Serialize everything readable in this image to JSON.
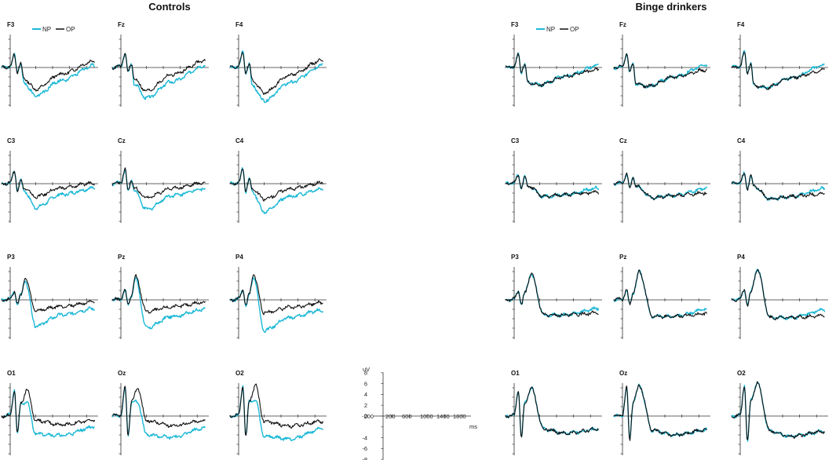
{
  "chart_data": {
    "type": "line",
    "groups": [
      {
        "title": "Controls",
        "side": "left"
      },
      {
        "title": "Binge drinkers",
        "side": "right"
      }
    ],
    "channels": [
      [
        "F3",
        "Fz",
        "F4"
      ],
      [
        "C3",
        "Cz",
        "C4"
      ],
      [
        "P3",
        "Pz",
        "P4"
      ],
      [
        "O1",
        "Oz",
        "O2"
      ]
    ],
    "legend": [
      {
        "name": "NP",
        "color": "#1bb8d6"
      },
      {
        "name": "OP",
        "color": "#111111"
      }
    ],
    "time_range_ms": [
      -200,
      2000
    ],
    "y_range_uV": [
      -8,
      8
    ],
    "scale": {
      "y_unit": "uV",
      "y_ticks": [
        "8",
        "6",
        "4",
        "2",
        "0",
        "-2",
        "-4",
        "-6",
        "-8"
      ],
      "x_unit": "ms",
      "x_ticks": [
        "-200",
        "200",
        "600",
        "1000",
        "1400",
        "1800"
      ]
    },
    "series_note": "Grand-average ERP waveforms per electrode; approximate trends read from the plot (positive up).",
    "waveforms": {
      "Controls": {
        "F": {
          "NP": [
            [
              -200,
              0
            ],
            [
              0,
              0.2
            ],
            [
              100,
              3
            ],
            [
              170,
              -1
            ],
            [
              250,
              0.8
            ],
            [
              320,
              -3.5
            ],
            [
              600,
              -6.5
            ],
            [
              1200,
              -3
            ],
            [
              2000,
              0.5
            ]
          ],
          "OP": [
            [
              -200,
              0
            ],
            [
              0,
              0.2
            ],
            [
              100,
              3
            ],
            [
              170,
              -1
            ],
            [
              250,
              0.8
            ],
            [
              320,
              -2.5
            ],
            [
              600,
              -5
            ],
            [
              1200,
              -1.5
            ],
            [
              2000,
              1.5
            ]
          ]
        },
        "C": {
          "NP": [
            [
              -200,
              0
            ],
            [
              0,
              0.2
            ],
            [
              100,
              3
            ],
            [
              170,
              -1.5
            ],
            [
              250,
              0.8
            ],
            [
              320,
              -1.5
            ],
            [
              600,
              -5.5
            ],
            [
              1200,
              -2.5
            ],
            [
              2000,
              -1
            ]
          ],
          "OP": [
            [
              -200,
              0
            ],
            [
              0,
              0.2
            ],
            [
              100,
              3
            ],
            [
              170,
              -1.5
            ],
            [
              250,
              0.8
            ],
            [
              320,
              -1
            ],
            [
              600,
              -3
            ],
            [
              1200,
              -1
            ],
            [
              2000,
              0.2
            ]
          ]
        },
        "P": {
          "NP": [
            [
              -200,
              0
            ],
            [
              0,
              0.2
            ],
            [
              100,
              2
            ],
            [
              170,
              -1
            ],
            [
              250,
              1
            ],
            [
              350,
              4.5
            ],
            [
              600,
              -6
            ],
            [
              1200,
              -3.5
            ],
            [
              2000,
              -2
            ]
          ],
          "OP": [
            [
              -200,
              0
            ],
            [
              0,
              0.2
            ],
            [
              100,
              2
            ],
            [
              170,
              -1
            ],
            [
              250,
              1
            ],
            [
              350,
              5
            ],
            [
              600,
              -2.5
            ],
            [
              1200,
              -1.5
            ],
            [
              2000,
              -0.5
            ]
          ]
        },
        "O": {
          "NP": [
            [
              -200,
              0
            ],
            [
              0,
              0.2
            ],
            [
              100,
              6
            ],
            [
              170,
              -4
            ],
            [
              250,
              3
            ],
            [
              400,
              3
            ],
            [
              600,
              -4
            ],
            [
              1200,
              -4.5
            ],
            [
              2000,
              -2.5
            ]
          ],
          "OP": [
            [
              -200,
              0
            ],
            [
              0,
              0.2
            ],
            [
              100,
              6
            ],
            [
              170,
              -4
            ],
            [
              250,
              3
            ],
            [
              400,
              6
            ],
            [
              600,
              -1
            ],
            [
              1200,
              -2
            ],
            [
              2000,
              -1
            ]
          ]
        }
      },
      "Binge drinkers": {
        "F": {
          "NP": [
            [
              -200,
              0
            ],
            [
              0,
              0.2
            ],
            [
              100,
              3
            ],
            [
              170,
              -1
            ],
            [
              250,
              0.8
            ],
            [
              320,
              -3.5
            ],
            [
              600,
              -4
            ],
            [
              1200,
              -2
            ],
            [
              2000,
              0.5
            ]
          ],
          "OP": [
            [
              -200,
              0
            ],
            [
              0,
              0.2
            ],
            [
              100,
              3
            ],
            [
              170,
              -1
            ],
            [
              250,
              0.8
            ],
            [
              320,
              -3.5
            ],
            [
              600,
              -4
            ],
            [
              1200,
              -2
            ],
            [
              2000,
              -0.5
            ]
          ]
        },
        "C": {
          "NP": [
            [
              -200,
              0
            ],
            [
              0,
              0.2
            ],
            [
              100,
              2
            ],
            [
              170,
              -1
            ],
            [
              250,
              1.5
            ],
            [
              320,
              -0.5
            ],
            [
              700,
              -3
            ],
            [
              1200,
              -2.5
            ],
            [
              2000,
              -1
            ]
          ],
          "OP": [
            [
              -200,
              0
            ],
            [
              0,
              0.2
            ],
            [
              100,
              2
            ],
            [
              170,
              -1
            ],
            [
              250,
              1.5
            ],
            [
              320,
              -0.5
            ],
            [
              700,
              -3
            ],
            [
              1200,
              -2.5
            ],
            [
              2000,
              -2
            ]
          ]
        },
        "P": {
          "NP": [
            [
              -200,
              0
            ],
            [
              0,
              0.2
            ],
            [
              100,
              2
            ],
            [
              170,
              -1
            ],
            [
              250,
              1.5
            ],
            [
              400,
              6
            ],
            [
              700,
              -3.5
            ],
            [
              1200,
              -3.5
            ],
            [
              2000,
              -2
            ]
          ],
          "OP": [
            [
              -200,
              0
            ],
            [
              0,
              0.2
            ],
            [
              100,
              2
            ],
            [
              170,
              -1
            ],
            [
              250,
              1.5
            ],
            [
              400,
              6
            ],
            [
              700,
              -3.5
            ],
            [
              1200,
              -3.5
            ],
            [
              2000,
              -3
            ]
          ]
        },
        "O": {
          "NP": [
            [
              -200,
              0
            ],
            [
              0,
              0.2
            ],
            [
              100,
              6
            ],
            [
              170,
              -5
            ],
            [
              250,
              3
            ],
            [
              400,
              6.5
            ],
            [
              700,
              -3
            ],
            [
              1200,
              -4
            ],
            [
              2000,
              -3
            ]
          ],
          "OP": [
            [
              -200,
              0
            ],
            [
              0,
              0.2
            ],
            [
              100,
              6
            ],
            [
              170,
              -5
            ],
            [
              250,
              3
            ],
            [
              400,
              6.5
            ],
            [
              700,
              -3
            ],
            [
              1200,
              -4
            ],
            [
              2000,
              -3
            ]
          ]
        }
      }
    }
  }
}
